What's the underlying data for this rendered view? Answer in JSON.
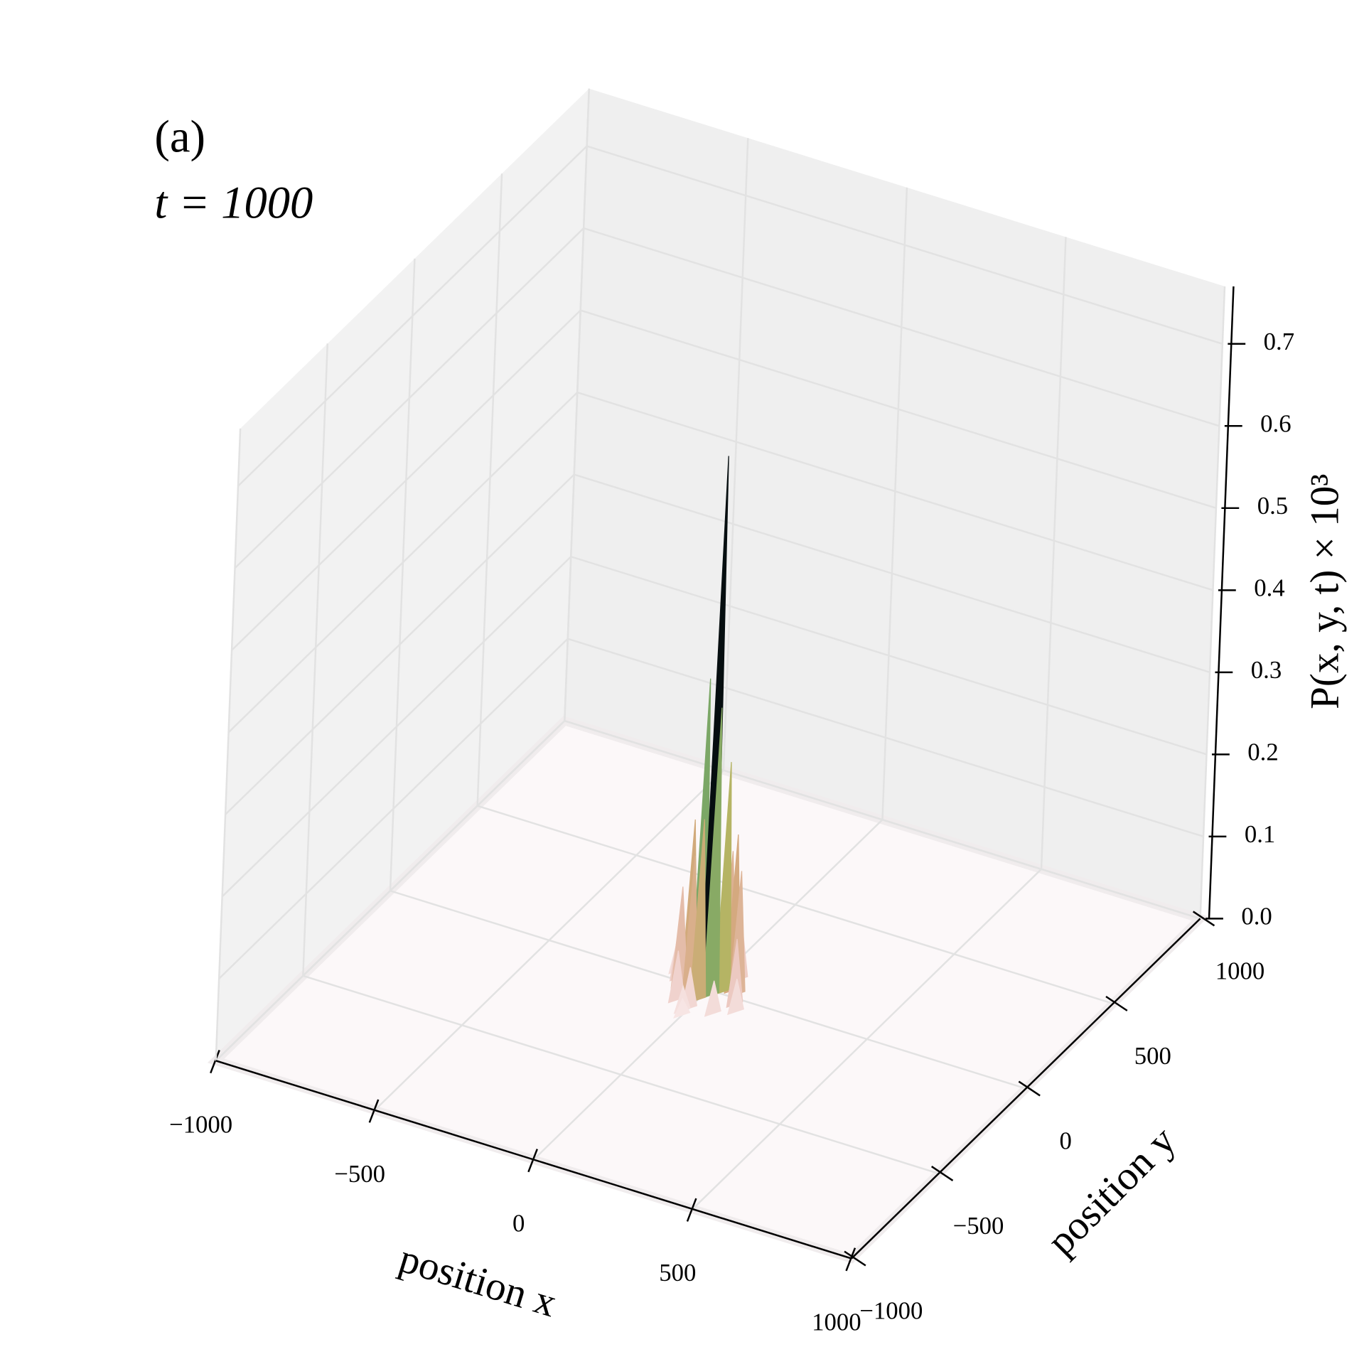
{
  "chart_data": {
    "type": "surface3d",
    "annotations": [
      "(a)",
      "t = 1000"
    ],
    "xlabel": "position x",
    "ylabel": "position y",
    "zlabel": "P(x, y, t) × 10³",
    "xlim": [
      -1000,
      1000
    ],
    "ylim": [
      -1000,
      1000
    ],
    "zlim": [
      0,
      0.77
    ],
    "xticks": [
      {
        "value": -1000,
        "label": "−1000"
      },
      {
        "value": -500,
        "label": "−500"
      },
      0,
      500,
      1000
    ],
    "yticks": [
      {
        "value": -1000,
        "label": "−1000"
      },
      {
        "value": -500,
        "label": "−500"
      },
      0,
      500,
      1000
    ],
    "zticks": [
      {
        "value": 0,
        "label": "0.0"
      },
      0.1,
      0.2,
      0.3,
      0.4,
      0.5,
      0.6,
      0.7
    ],
    "grid": true,
    "colormap": [
      "#fbeef0",
      "#e9c2b8",
      "#d4a97e",
      "#b3b562",
      "#72a567",
      "#35797a",
      "#1d4250",
      "#000000"
    ],
    "x": [
      0,
      -40,
      20,
      -20,
      40,
      -60,
      60,
      0,
      -80,
      80,
      -30,
      30,
      0,
      -100,
      100,
      -50,
      50,
      0,
      -120,
      120,
      10,
      -10,
      70,
      -70,
      0,
      0
    ],
    "y": [
      0,
      20,
      -20,
      40,
      10,
      0,
      30,
      -60,
      -20,
      20,
      -50,
      60,
      80,
      10,
      -30,
      -90,
      90,
      -110,
      40,
      -60,
      120,
      -130,
      -100,
      100,
      150,
      -150
    ],
    "z": [
      0.65,
      0.37,
      0.35,
      0.3,
      0.28,
      0.2,
      0.19,
      0.22,
      0.12,
      0.15,
      0.17,
      0.16,
      0.1,
      0.07,
      0.08,
      0.06,
      0.07,
      0.05,
      0.04,
      0.04,
      0.03,
      0.03,
      0.04,
      0.03,
      0.02,
      0.02
    ]
  }
}
